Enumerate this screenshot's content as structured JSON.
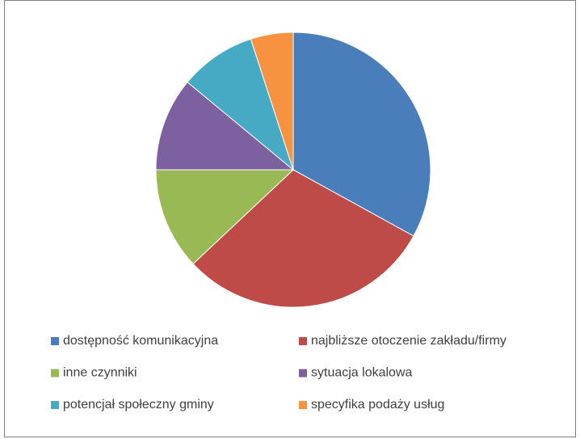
{
  "chart_data": {
    "type": "pie",
    "categories": [
      "dostępność komunikacyjna",
      "najbliższe otoczenie zakładu/firmy",
      "inne czynniki",
      "sytuacja lokalowa",
      "potencjał społeczny gminy",
      "specyfika podaży usług"
    ],
    "values": [
      33,
      30,
      12,
      11,
      9,
      5
    ],
    "colors": [
      "#4a7ebb",
      "#be4b48",
      "#98b954",
      "#7d60a0",
      "#46aac5",
      "#f69240"
    ],
    "legend": "bottom"
  }
}
